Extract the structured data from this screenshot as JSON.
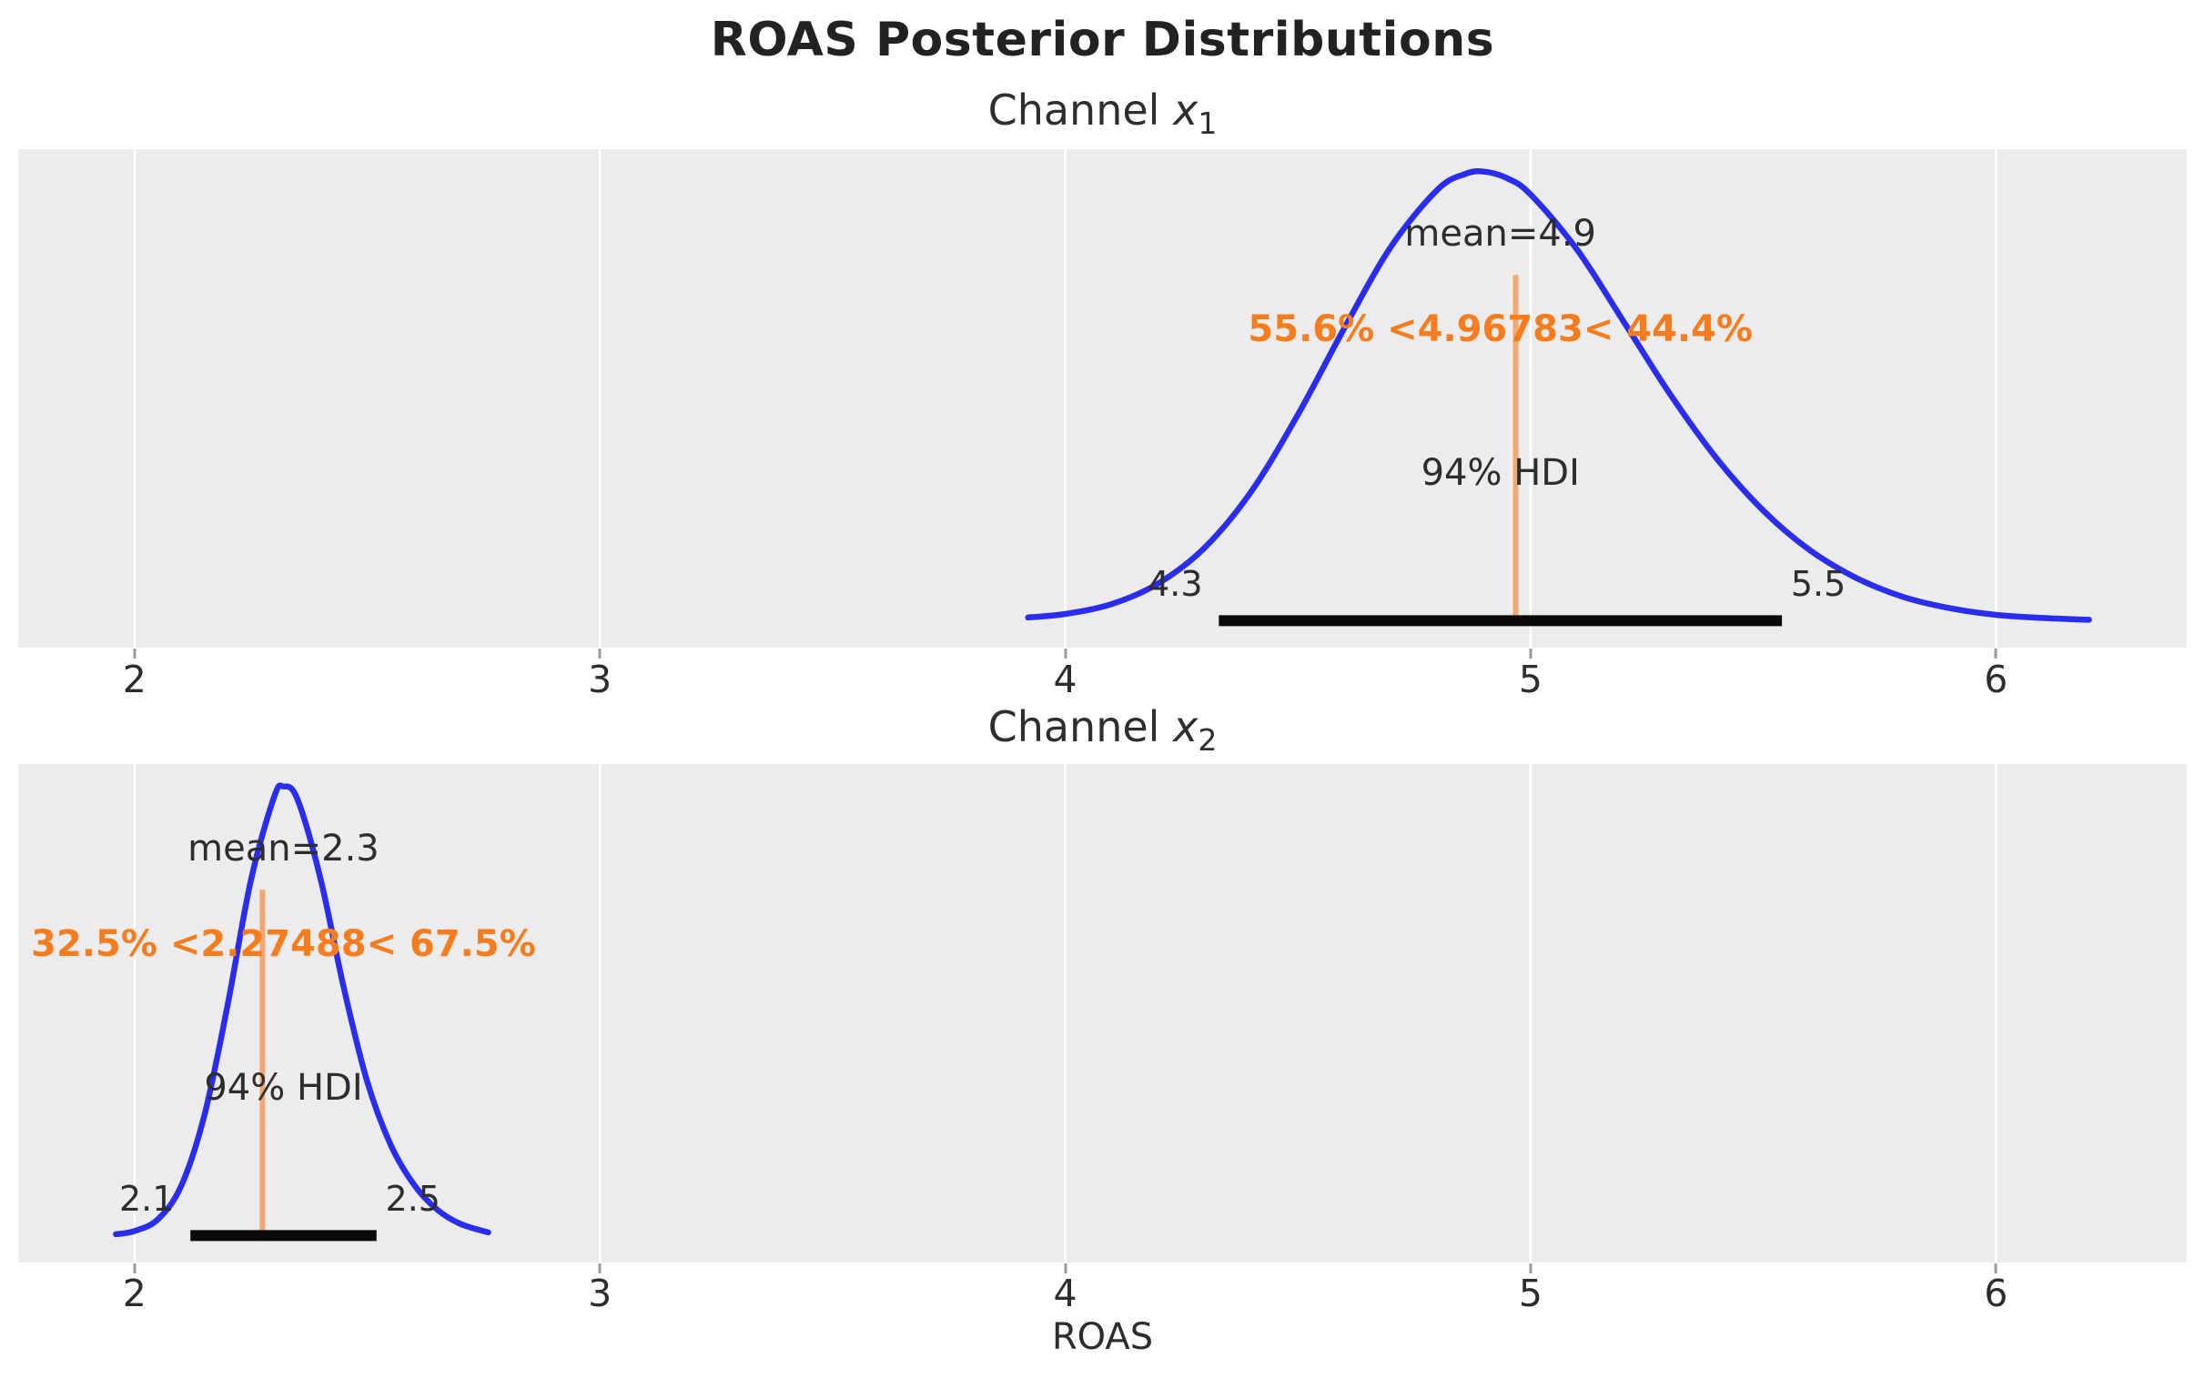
{
  "chart_data": {
    "type": "kde",
    "title": "ROAS Posterior Distributions",
    "xlabel": "ROAS",
    "x_ticks": [
      "2",
      "3",
      "4",
      "5",
      "6"
    ],
    "x_tick_values": [
      2,
      3,
      4,
      5,
      6
    ],
    "xlim": [
      1.75,
      6.41
    ],
    "ylim": [
      -0.06,
      1.05
    ],
    "grid": "white-vertical",
    "legend": "none",
    "colors": {
      "curve": "#2a2eec",
      "ref_line": "rgba(246,124,30,0.6)",
      "ref_text": "#f67c1e",
      "hdi_bar": "#0a0a0a",
      "panel_bg": "#ececec",
      "grid_line": "#ffffff",
      "text": "#2d2d2d"
    },
    "panels": [
      {
        "title": {
          "prefix": "Channel ",
          "var": "x",
          "sub": "1"
        },
        "mean": 4.9,
        "mean_label": "mean=4.9",
        "ref_value": 4.96783,
        "prob_less": "55.6%",
        "prob_greater": "44.4%",
        "prob_label": "55.6% <4.96783< 44.4%",
        "hdi_prob": "94%",
        "hdi_title": "94% HDI",
        "hdi": [
          4.33,
          5.54
        ],
        "hdi_labels": [
          "4.3",
          "5.5"
        ],
        "curve": {
          "x": [
            3.92,
            4.0,
            4.1,
            4.2,
            4.3,
            4.4,
            4.5,
            4.6,
            4.7,
            4.8,
            4.86,
            4.9,
            4.95,
            5.0,
            5.1,
            5.2,
            5.3,
            5.4,
            5.5,
            5.6,
            5.7,
            5.8,
            5.9,
            6.0,
            6.1,
            6.2
          ],
          "y": [
            0.007,
            0.015,
            0.037,
            0.083,
            0.163,
            0.288,
            0.459,
            0.652,
            0.833,
            0.96,
            0.995,
            1.0,
            0.985,
            0.949,
            0.826,
            0.666,
            0.504,
            0.361,
            0.245,
            0.157,
            0.095,
            0.053,
            0.028,
            0.013,
            0.006,
            0.002
          ]
        }
      },
      {
        "title": {
          "prefix": "Channel ",
          "var": "x",
          "sub": "2"
        },
        "mean": 2.3,
        "mean_label": "mean=2.3",
        "ref_value": 2.27488,
        "prob_less": "32.5%",
        "prob_greater": "67.5%",
        "prob_label": "32.5% <2.27488< 67.5%",
        "hdi_prob": "94%",
        "hdi_title": "94% HDI",
        "hdi": [
          2.12,
          2.52
        ],
        "hdi_labels": [
          "2.1",
          "2.5"
        ],
        "curve": {
          "x": [
            1.96,
            2.0,
            2.05,
            2.1,
            2.15,
            2.2,
            2.25,
            2.3,
            2.32,
            2.35,
            2.4,
            2.45,
            2.5,
            2.55,
            2.6,
            2.65,
            2.7,
            2.76
          ],
          "y": [
            0.003,
            0.01,
            0.036,
            0.11,
            0.267,
            0.513,
            0.791,
            0.977,
            1.0,
            0.972,
            0.793,
            0.55,
            0.343,
            0.203,
            0.114,
            0.058,
            0.026,
            0.007
          ]
        }
      }
    ]
  }
}
